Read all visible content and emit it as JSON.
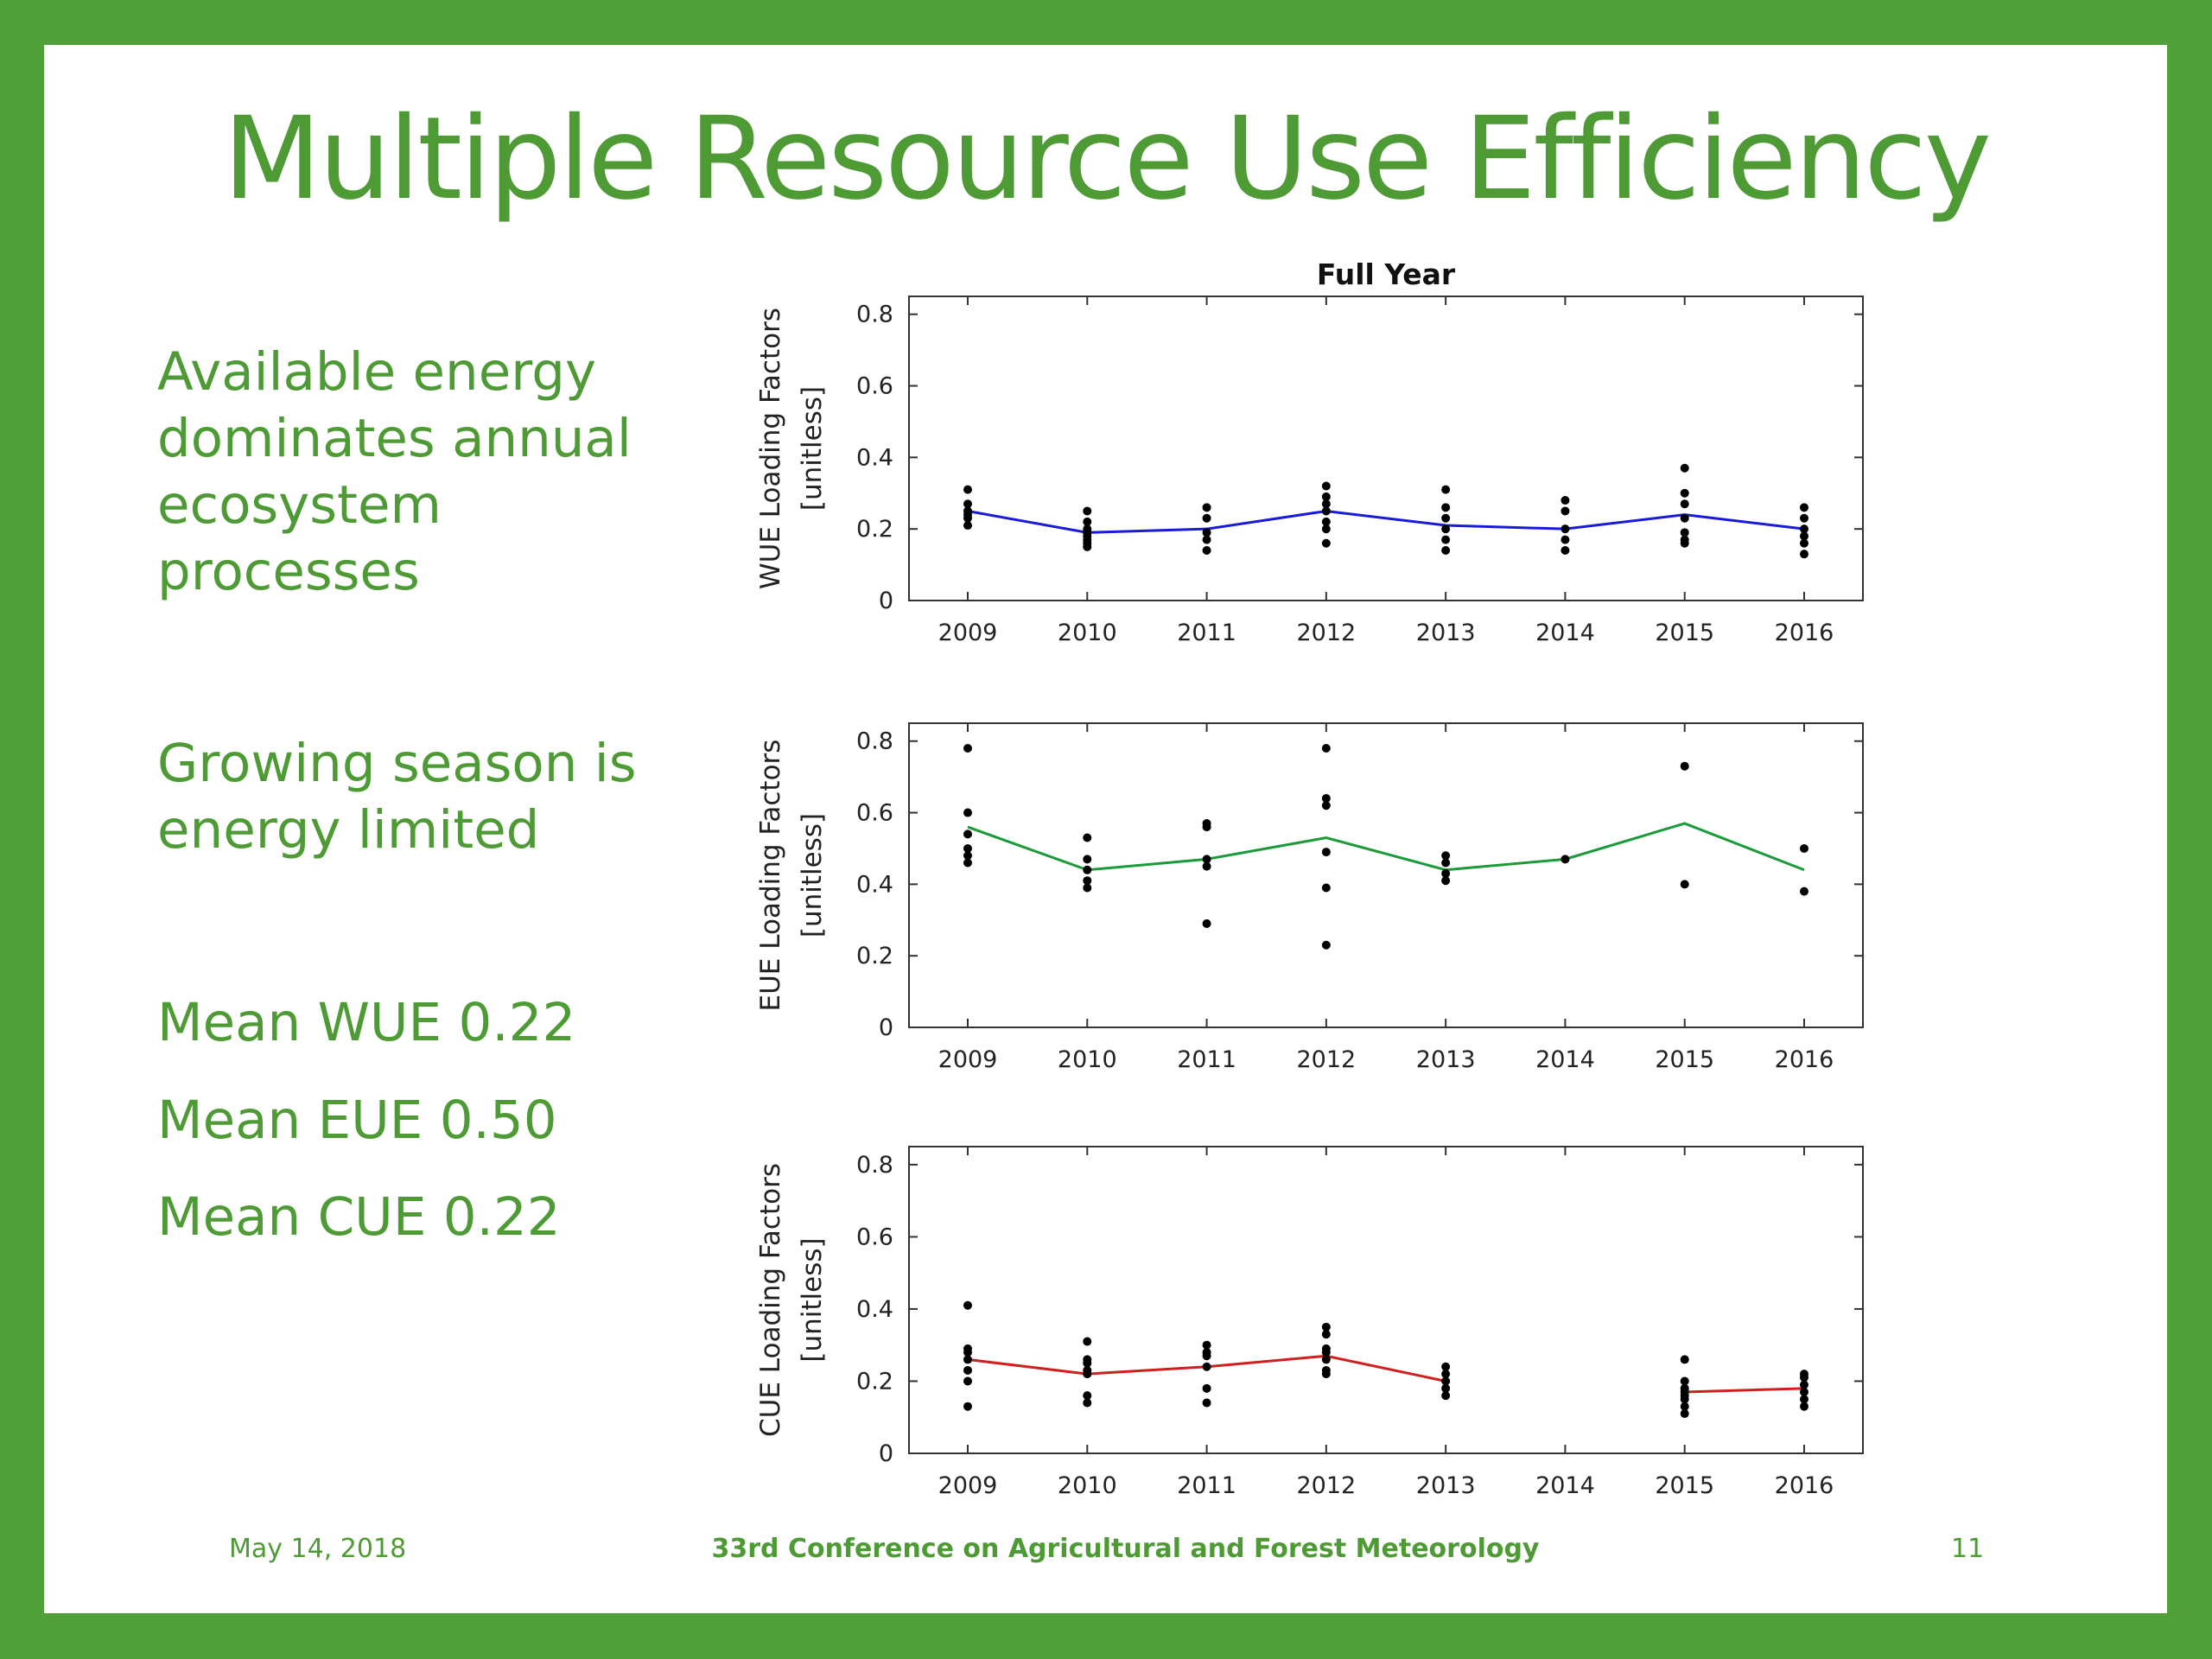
{
  "slide": {
    "title": "Multiple Resource Use Efficiency",
    "bullets": [
      "Available energy dominates annual ecosystem processes",
      "Growing season is energy limited"
    ],
    "means": [
      "Mean WUE 0.22",
      "Mean EUE 0.50",
      "Mean CUE 0.22"
    ],
    "footer": {
      "date": "May 14, 2018",
      "conference": "33rd Conference on Agricultural and Forest Meteorology",
      "page": "11"
    },
    "colors": {
      "border": "#52a03a",
      "text": "#4e9b35"
    }
  },
  "chart_data": [
    {
      "type": "line",
      "title": "Full Year",
      "ylabel": [
        "WUE Loading Factors",
        "[unitless]"
      ],
      "categories": [
        "2009",
        "2010",
        "2011",
        "2012",
        "2013",
        "2014",
        "2015",
        "2016"
      ],
      "ylim": [
        0,
        0.85
      ],
      "yticks": [
        "0",
        "0.2",
        "0.4",
        "0.6",
        "0.8"
      ],
      "line_color": "#1a1ad9",
      "mean": [
        0.25,
        0.19,
        0.2,
        0.25,
        0.21,
        0.2,
        0.24,
        0.2
      ],
      "points": [
        [
          0.31,
          0.27,
          0.25,
          0.24,
          0.23,
          0.21
        ],
        [
          0.25,
          0.22,
          0.2,
          0.19,
          0.18,
          0.17,
          0.16,
          0.15
        ],
        [
          0.26,
          0.23,
          0.19,
          0.17,
          0.14
        ],
        [
          0.32,
          0.29,
          0.27,
          0.25,
          0.22,
          0.2,
          0.16
        ],
        [
          0.31,
          0.26,
          0.23,
          0.2,
          0.17,
          0.14
        ],
        [
          0.28,
          0.25,
          0.2,
          0.17,
          0.14
        ],
        [
          0.37,
          0.3,
          0.27,
          0.23,
          0.19,
          0.17,
          0.16
        ],
        [
          0.26,
          0.23,
          0.2,
          0.18,
          0.16,
          0.13
        ]
      ]
    },
    {
      "type": "line",
      "title": "",
      "ylabel": [
        "EUE Loading Factors",
        "[unitless]"
      ],
      "categories": [
        "2009",
        "2010",
        "2011",
        "2012",
        "2013",
        "2014",
        "2015",
        "2016"
      ],
      "ylim": [
        0,
        0.85
      ],
      "yticks": [
        "0",
        "0.2",
        "0.4",
        "0.6",
        "0.8"
      ],
      "line_color": "#1b9a3a",
      "mean": [
        0.56,
        0.44,
        0.47,
        0.53,
        0.44,
        0.47,
        0.57,
        0.44
      ],
      "points": [
        [
          0.78,
          0.6,
          0.54,
          0.5,
          0.48,
          0.46
        ],
        [
          0.53,
          0.47,
          0.44,
          0.41,
          0.39
        ],
        [
          0.57,
          0.56,
          0.47,
          0.45,
          0.29
        ],
        [
          0.78,
          0.64,
          0.62,
          0.49,
          0.39,
          0.23
        ],
        [
          0.48,
          0.46,
          0.43,
          0.41
        ],
        [
          0.47
        ],
        [
          0.73,
          0.4
        ],
        [
          0.5,
          0.38
        ]
      ]
    },
    {
      "type": "line",
      "title": "",
      "ylabel": [
        "CUE Loading Factors",
        "[unitless]"
      ],
      "categories": [
        "2009",
        "2010",
        "2011",
        "2012",
        "2013",
        "2014",
        "2015",
        "2016"
      ],
      "ylim": [
        0,
        0.85
      ],
      "yticks": [
        "0",
        "0.2",
        "0.4",
        "0.6",
        "0.8"
      ],
      "line_color": "#d01f1f",
      "mean": [
        0.26,
        0.22,
        0.24,
        0.27,
        0.2,
        null,
        0.17,
        0.18
      ],
      "points": [
        [
          0.41,
          0.29,
          0.28,
          0.26,
          0.23,
          0.2,
          0.13
        ],
        [
          0.31,
          0.26,
          0.25,
          0.23,
          0.22,
          0.16,
          0.14
        ],
        [
          0.3,
          0.28,
          0.27,
          0.24,
          0.18,
          0.14
        ],
        [
          0.35,
          0.33,
          0.29,
          0.28,
          0.26,
          0.23,
          0.22
        ],
        [
          0.24,
          0.22,
          0.2,
          0.18,
          0.16
        ],
        [],
        [
          0.26,
          0.2,
          0.18,
          0.17,
          0.16,
          0.15,
          0.13,
          0.11
        ],
        [
          0.22,
          0.21,
          0.19,
          0.17,
          0.15,
          0.13
        ]
      ]
    }
  ]
}
